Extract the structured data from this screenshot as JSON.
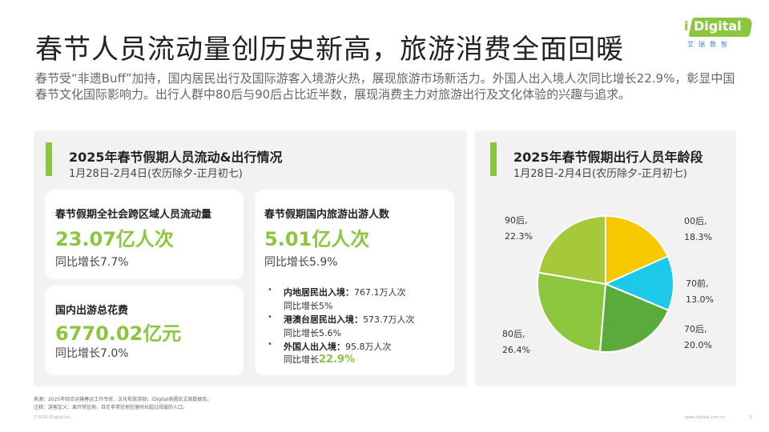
{
  "header": {
    "title": "春节人员流动量创历史新高，旅游消费全面回暖",
    "logo_text": "Digital",
    "logo_i": "i",
    "logo_sub": "艾瑞数智"
  },
  "intro": "春节受“非遗Buff”加持，国内居民出行及国际游客入境游火热，展现旅游市场新活力。外国人出入境人次同比增长22.9%，彰显中国春节文化国际影响力。出行人群中80后与90后占比近半数，展现消费主力对旅游出行及文化体验的兴趣与追求。",
  "left_panel": {
    "title": "2025年春节假期人员流动&出行情况",
    "subtitle": "1月28日-2月4日(农历除夕-正月初七)",
    "card1": {
      "label": "春节假期全社会跨区域人员流动量",
      "value": "23.07亿人次",
      "growth": "同比增长7.7%"
    },
    "card2": {
      "label": "春节假期国内旅游出游人数",
      "value": "5.01亿人次",
      "growth": "同比增长5.9%"
    },
    "card3": {
      "label": "国内出游总花费",
      "value": "6770.02亿元",
      "growth": "同比增长7.0%"
    },
    "bullets": [
      {
        "key": "内地居民出入境：",
        "val": "767.1万人次",
        "sub": "同比增长5%"
      },
      {
        "key": "港澳台居民出入境：",
        "val": "573.7万人次",
        "sub": "同比增长5.6%"
      },
      {
        "key": "外国人出入境：",
        "val": "95.8万人次",
        "sub_prefix": "同比增长",
        "sub_highlight": "22.9%"
      }
    ],
    "bullet_glyph": "•"
  },
  "right_panel": {
    "title": "2025年春节假期出行人员年龄段",
    "subtitle": "1月28日-2月4日(农历除夕-正月初七)"
  },
  "chart_data": {
    "type": "pie",
    "title": "2025年春节假期出行人员年龄段",
    "slices": [
      {
        "name": "00后,",
        "value": 18.3,
        "label": "18.3%",
        "color": "#f7c800"
      },
      {
        "name": "70前,",
        "value": 13.0,
        "label": "13.0%",
        "color": "#1ec8e8"
      },
      {
        "name": "70后,",
        "value": 20.0,
        "label": "20.0%",
        "color": "#5aaa3c"
      },
      {
        "name": "80后,",
        "value": 26.4,
        "label": "26.4%",
        "color": "#8cc63f"
      },
      {
        "name": "90后,",
        "value": 22.3,
        "label": "22.3%",
        "color": "#a5c93a"
      }
    ],
    "start_angle_deg": 0,
    "direction": "clockwise",
    "legend": "none"
  },
  "footnotes": {
    "source": "来源：2025年综合运输春运工作专班、文化和旅游部；iDigital商圈及文旅数据库。",
    "note": "注释：游客定义：离开常驻地，且在非常驻地驻留时长超过阈值的人口。"
  },
  "footer": {
    "copyright": "©2025 iDigital Inc.",
    "url": "www.idigital.com.cn",
    "page": "3"
  },
  "colors": {
    "accent": "#8cc63f",
    "panel_bg": "#f2f2f2"
  }
}
